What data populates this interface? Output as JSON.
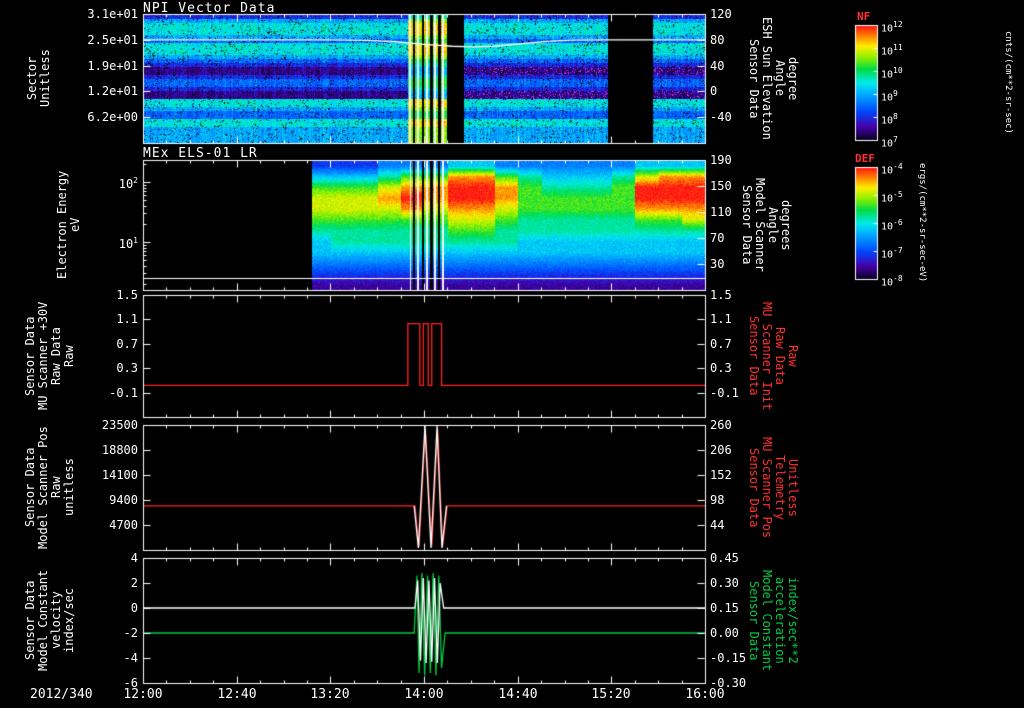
{
  "xaxis": {
    "date_label": "2012/340",
    "tick_labels": [
      "12:00",
      "12:40",
      "13:20",
      "14:00",
      "14:40",
      "15:20",
      "16:00"
    ]
  },
  "chart_data": [
    {
      "type": "heatmap",
      "title": "NPI Vector Data",
      "ylabel_lines": [
        "Sector",
        "Unitless"
      ],
      "ylim": [
        0,
        31
      ],
      "yticks": [
        {
          "v": 31,
          "label": "3.1e+01"
        },
        {
          "v": 24.8,
          "label": "2.5e+01"
        },
        {
          "v": 18.6,
          "label": "1.9e+01"
        },
        {
          "v": 12.4,
          "label": "1.2e+01"
        },
        {
          "v": 6.2,
          "label": "6.2e+00"
        }
      ],
      "right_axis": {
        "label_lines": [
          "Sensor Data",
          "ESH Sun Elevation",
          "Angle",
          "degree"
        ],
        "color": "#ffffff",
        "ylim": [
          -80,
          120
        ],
        "ticks": [
          {
            "v": 120,
            "label": "120"
          },
          {
            "v": 80,
            "label": "80"
          },
          {
            "v": 40,
            "label": "40"
          },
          {
            "v": 0,
            "label": "0"
          },
          {
            "v": -40,
            "label": "-40"
          }
        ]
      },
      "colorbar": {
        "title": "NF",
        "unit": "cnts/(cm**2-sr-sec)",
        "tick_exponents": [
          12,
          11,
          10,
          9,
          8,
          7
        ]
      },
      "xrange_hours": [
        12,
        16
      ],
      "row_levels": [
        2,
        4,
        5,
        5,
        5,
        4,
        3,
        5,
        5,
        5,
        4,
        3,
        2,
        1,
        1,
        2,
        3,
        3,
        2,
        1,
        1,
        5,
        5,
        4,
        3,
        3,
        5,
        5,
        4,
        4,
        4,
        4
      ],
      "data_gaps": [
        [
          2.163,
          2.278
        ],
        [
          3.303,
          3.623
        ]
      ],
      "event_window": [
        1.88,
        2.163
      ],
      "stripes_white": [
        1.9,
        1.955,
        2.02,
        2.075,
        2.13
      ],
      "stripes_black": [
        1.925,
        1.99,
        2.05,
        2.105
      ],
      "overlay_line": {
        "name": "esh-sun-elevation-angle",
        "color": "#ffffff",
        "points": [
          [
            0,
            80
          ],
          [
            1.3,
            80
          ],
          [
            1.6,
            79
          ],
          [
            1.8,
            77
          ],
          [
            2.0,
            73
          ],
          [
            2.2,
            70
          ],
          [
            2.35,
            69
          ],
          [
            2.5,
            70
          ],
          [
            2.7,
            74
          ],
          [
            2.9,
            78
          ],
          [
            3.05,
            79.5
          ],
          [
            3.3,
            80
          ],
          [
            4,
            80
          ]
        ]
      }
    },
    {
      "type": "spectrogram",
      "title": "MEx ELS-01 LR",
      "ylabel_lines": [
        "Electron Energy",
        "eV"
      ],
      "ylog_lim": [
        0.2,
        2.37
      ],
      "yticks_log": [
        {
          "exp": 2
        },
        {
          "exp": 1
        }
      ],
      "right_axis": {
        "label_lines": [
          "Sensor Data",
          "Model Scanner",
          "Angle",
          "degrees"
        ],
        "color": "#ffffff",
        "ylim": [
          -10,
          190
        ],
        "ticks": [
          {
            "v": 190,
            "label": "190"
          },
          {
            "v": 150,
            "label": "150"
          },
          {
            "v": 110,
            "label": "110"
          },
          {
            "v": 70,
            "label": "70"
          },
          {
            "v": 30,
            "label": "30"
          }
        ]
      },
      "colorbar": {
        "title": "DEF",
        "unit": "ergs/(cm**2-sr-sec-eV)",
        "tick_exponents": [
          -4,
          -5,
          -6,
          -7,
          -8
        ]
      },
      "data_start_hour": 1.2,
      "grid_cols": 24,
      "grid_rows": [
        [
          -1,
          -1,
          -1,
          -1,
          -1,
          -1,
          -1,
          2,
          2,
          2,
          3,
          3,
          3,
          4,
          4,
          3,
          3,
          3,
          3,
          3,
          3,
          4,
          4,
          4
        ],
        [
          -1,
          -1,
          -1,
          -1,
          -1,
          -1,
          -1,
          4,
          4,
          4,
          5,
          6,
          6,
          8,
          8,
          6,
          5,
          4,
          4,
          4,
          5,
          7,
          8,
          8
        ],
        [
          -1,
          -1,
          -1,
          -1,
          -1,
          -1,
          -1,
          6,
          6,
          6,
          7,
          8,
          8,
          9,
          9,
          8,
          6,
          5,
          5,
          5,
          6,
          9,
          9,
          9
        ],
        [
          -1,
          -1,
          -1,
          -1,
          -1,
          -1,
          -1,
          7,
          7,
          7,
          8,
          9,
          8,
          9,
          9,
          8,
          6,
          6,
          6,
          6,
          6,
          9,
          9,
          9
        ],
        [
          -1,
          -1,
          -1,
          -1,
          -1,
          -1,
          -1,
          7,
          7,
          7,
          7,
          8,
          7,
          8,
          8,
          7,
          6,
          6,
          6,
          6,
          6,
          8,
          8,
          8
        ],
        [
          -1,
          -1,
          -1,
          -1,
          -1,
          -1,
          -1,
          6,
          6,
          6,
          6,
          6,
          6,
          7,
          7,
          6,
          5,
          5,
          5,
          5,
          5,
          6,
          6,
          7
        ],
        [
          -1,
          -1,
          -1,
          -1,
          -1,
          -1,
          -1,
          5,
          5,
          5,
          5,
          5,
          5,
          6,
          6,
          5,
          5,
          5,
          5,
          5,
          5,
          5,
          5,
          5
        ],
        [
          -1,
          -1,
          -1,
          -1,
          -1,
          -1,
          -1,
          4,
          5,
          5,
          5,
          5,
          5,
          5,
          5,
          5,
          4,
          4,
          4,
          4,
          4,
          4,
          4,
          4
        ],
        [
          -1,
          -1,
          -1,
          -1,
          -1,
          -1,
          -1,
          4,
          4,
          4,
          4,
          4,
          4,
          4,
          4,
          4,
          4,
          4,
          4,
          4,
          4,
          4,
          4,
          4
        ],
        [
          -1,
          -1,
          -1,
          -1,
          -1,
          -1,
          -1,
          3,
          3,
          3,
          3,
          3,
          3,
          3,
          3,
          3,
          3,
          3,
          3,
          3,
          3,
          3,
          3,
          3
        ],
        [
          -1,
          -1,
          -1,
          -1,
          -1,
          -1,
          -1,
          2,
          2,
          2,
          2,
          2,
          2,
          2,
          2,
          2,
          2,
          2,
          2,
          2,
          2,
          2,
          2,
          2
        ],
        [
          -1,
          -1,
          -1,
          -1,
          -1,
          -1,
          -1,
          1,
          1,
          1,
          1,
          1,
          1,
          1,
          1,
          1,
          1,
          1,
          1,
          1,
          1,
          1,
          1,
          1
        ]
      ],
      "event_window": [
        1.88,
        2.163
      ],
      "stripes_white": [
        1.9,
        1.955,
        2.02,
        2.075,
        2.13
      ],
      "stripes_black": [
        1.925,
        1.99,
        2.05,
        2.105
      ],
      "bottom_line": {
        "name": "baseline",
        "color": "#ffffff",
        "y_frac": 0.905
      }
    },
    {
      "type": "line",
      "ylabel_lines": [
        "Sensor Data",
        "MU Scanner +30V",
        "Raw Data",
        "Raw"
      ],
      "ylim": [
        -0.5,
        1.5
      ],
      "yticks": [
        {
          "v": 1.5,
          "label": "1.5"
        },
        {
          "v": 1.1,
          "label": "1.1"
        },
        {
          "v": 0.7,
          "label": "0.7"
        },
        {
          "v": 0.3,
          "label": "0.3"
        },
        {
          "v": -0.1,
          "label": "-0.1"
        }
      ],
      "right_axis": {
        "label_lines": [
          "Sensor Data",
          "MU Scanner Init",
          "Raw Data",
          "Raw"
        ],
        "color": "#ff3030",
        "ylim": [
          -0.5,
          1.5
        ],
        "ticks": [
          {
            "v": 1.5,
            "label": "1.5"
          },
          {
            "v": 1.1,
            "label": "1.1"
          },
          {
            "v": 0.7,
            "label": "0.7"
          },
          {
            "v": 0.3,
            "label": "0.3"
          },
          {
            "v": -0.1,
            "label": "-0.1"
          }
        ]
      },
      "series": [
        {
          "name": "mu-scanner-30v-raw",
          "color": "#ff2222",
          "points": [
            [
              0,
              0.02
            ],
            [
              1.885,
              0.02
            ],
            [
              1.885,
              1.03
            ],
            [
              1.97,
              1.03
            ],
            [
              1.97,
              0.02
            ],
            [
              1.995,
              0.02
            ],
            [
              1.995,
              1.03
            ],
            [
              2.03,
              1.03
            ],
            [
              2.03,
              0.02
            ],
            [
              2.055,
              0.02
            ],
            [
              2.055,
              1.03
            ],
            [
              2.125,
              1.03
            ],
            [
              2.125,
              0.02
            ],
            [
              4,
              0.02
            ]
          ]
        }
      ]
    },
    {
      "type": "line",
      "ylabel_lines": [
        "Sensor Data",
        "Model Scanner Pos",
        "Raw",
        "unitless"
      ],
      "ylim": [
        0,
        23500
      ],
      "yticks": [
        {
          "v": 23500,
          "label": "23500"
        },
        {
          "v": 18800,
          "label": "18800"
        },
        {
          "v": 14100,
          "label": "14100"
        },
        {
          "v": 9400,
          "label": "9400"
        },
        {
          "v": 4700,
          "label": "4700"
        }
      ],
      "right_axis": {
        "label_lines": [
          "Sensor Data",
          "MU Scanner Pos",
          "Telemetry",
          "Unitless"
        ],
        "color": "#ff3030",
        "ylim": [
          -10,
          260
        ],
        "ticks": [
          {
            "v": 260,
            "label": "260"
          },
          {
            "v": 206,
            "label": "206"
          },
          {
            "v": 152,
            "label": "152"
          },
          {
            "v": 98,
            "label": "98"
          },
          {
            "v": 44,
            "label": "44"
          }
        ]
      },
      "series": [
        {
          "name": "mu-scanner-pos-telemetry",
          "color": "#ff2222",
          "points": [
            [
              0,
              8300
            ],
            [
              1.935,
              8300
            ],
            [
              1.965,
              600
            ],
            [
              2.01,
              22800
            ],
            [
              2.055,
              600
            ],
            [
              2.097,
              22800
            ],
            [
              2.132,
              600
            ],
            [
              2.165,
              8300
            ],
            [
              4,
              8300
            ]
          ]
        },
        {
          "name": "model-scanner-pos",
          "color": "#ffffff",
          "points": [
            [
              1.93,
              8300
            ],
            [
              1.96,
              400
            ],
            [
              2.007,
              23300
            ],
            [
              2.05,
              400
            ],
            [
              2.093,
              23300
            ],
            [
              2.128,
              400
            ],
            [
              2.16,
              8300
            ]
          ]
        }
      ]
    },
    {
      "type": "line",
      "ylabel_lines": [
        "Sensor Data",
        "Model Constant",
        "velocity",
        "index/sec"
      ],
      "ylim": [
        -6,
        4
      ],
      "yticks": [
        {
          "v": 4,
          "label": "4"
        },
        {
          "v": 2,
          "label": "2"
        },
        {
          "v": 0,
          "label": "0"
        },
        {
          "v": -2,
          "label": "-2"
        },
        {
          "v": -4,
          "label": "-4"
        },
        {
          "v": -6,
          "label": "-6"
        }
      ],
      "right_axis": {
        "label_lines": [
          "Sensor Data",
          "Model Constant",
          "acceleration",
          "index/sec**2"
        ],
        "color": "#00cc44",
        "ylim": [
          -0.3,
          0.45
        ],
        "ticks": [
          {
            "v": 0.45,
            "label": "0.45"
          },
          {
            "v": 0.3,
            "label": "0.30"
          },
          {
            "v": 0.15,
            "label": "0.15"
          },
          {
            "v": 0.0,
            "label": "0.00"
          },
          {
            "v": -0.15,
            "label": "-0.15"
          },
          {
            "v": -0.3,
            "label": "-0.30"
          }
        ]
      },
      "series": [
        {
          "name": "model-constant-acceleration",
          "color": "#00cc44",
          "points": [
            [
              0,
              -2
            ],
            [
              1.93,
              -2
            ],
            [
              1.95,
              2.6
            ],
            [
              1.965,
              -5.2
            ],
            [
              1.985,
              2.8
            ],
            [
              2.005,
              -5.4
            ],
            [
              2.025,
              2.6
            ],
            [
              2.045,
              -5.2
            ],
            [
              2.065,
              2.8
            ],
            [
              2.085,
              -5.4
            ],
            [
              2.105,
              2.6
            ],
            [
              2.125,
              -4.8
            ],
            [
              2.15,
              -2
            ],
            [
              4,
              -2
            ]
          ]
        },
        {
          "name": "model-constant-velocity",
          "color": "#ffffff",
          "points": [
            [
              0,
              0
            ],
            [
              1.935,
              0
            ],
            [
              1.955,
              2.2
            ],
            [
              1.975,
              -4.2
            ],
            [
              1.995,
              2.4
            ],
            [
              2.015,
              -4.4
            ],
            [
              2.035,
              2.2
            ],
            [
              2.055,
              -4.3
            ],
            [
              2.075,
              2.4
            ],
            [
              2.095,
              -4.4
            ],
            [
              2.115,
              2.0
            ],
            [
              2.14,
              0
            ],
            [
              4,
              0
            ]
          ]
        }
      ]
    }
  ]
}
